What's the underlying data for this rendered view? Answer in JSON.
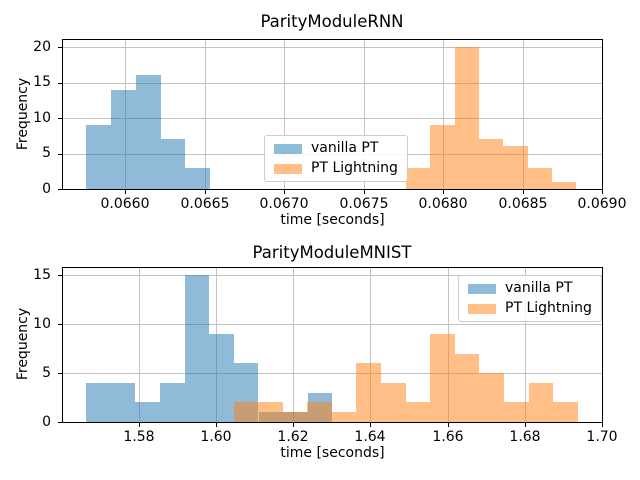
{
  "figure": {
    "background": "#ffffff",
    "grid_color": "#c3c3c3",
    "text_color": "#000000",
    "fill_alpha": 0.5,
    "series_colors": {
      "vanilla_pt": "#1f77b4",
      "pt_lightning": "#ff7f0e"
    }
  },
  "chart_data": [
    {
      "type": "bar",
      "subtype": "histogram",
      "title": "ParityModuleRNN",
      "xlabel": "time [seconds]",
      "ylabel": "Frequency",
      "xlim": [
        0.06561,
        0.069
      ],
      "ylim": [
        0,
        21
      ],
      "grid": true,
      "xticks": {
        "values": [
          0.066,
          0.0665,
          0.067,
          0.0675,
          0.068,
          0.0685,
          0.069
        ],
        "labels": [
          "0.0660",
          "0.0665",
          "0.0670",
          "0.0675",
          "0.0680",
          "0.0685",
          "0.0690"
        ]
      },
      "yticks": {
        "values": [
          0,
          5,
          10,
          15,
          20
        ],
        "labels": [
          "0",
          "5",
          "10",
          "15",
          "20"
        ]
      },
      "legend": {
        "location": "center",
        "entries": [
          "vanilla PT",
          "PT Lightning"
        ]
      },
      "series": [
        {
          "name": "vanilla PT",
          "color": "#1f77b4",
          "bin_start": 0.065757,
          "bin_width": 0.0001556,
          "counts": [
            9,
            14,
            16,
            7,
            3
          ]
        },
        {
          "name": "PT Lightning",
          "color": "#ff7f0e",
          "bin_start": 0.067766,
          "bin_width": 0.00015325,
          "counts": [
            3,
            9,
            20,
            7,
            6,
            3,
            1
          ]
        }
      ]
    },
    {
      "type": "bar",
      "subtype": "histogram",
      "title": "ParityModuleMNIST",
      "xlabel": "time [seconds]",
      "ylabel": "Frequency",
      "xlim": [
        1.5604,
        1.7
      ],
      "ylim": [
        0,
        15.75
      ],
      "grid": true,
      "xticks": {
        "values": [
          1.58,
          1.6,
          1.62,
          1.64,
          1.66,
          1.68,
          1.7
        ],
        "labels": [
          "1.58",
          "1.60",
          "1.62",
          "1.64",
          "1.66",
          "1.68",
          "1.70"
        ]
      },
      "yticks": {
        "values": [
          0,
          5,
          10,
          15
        ],
        "labels": [
          "0",
          "5",
          "10",
          "15"
        ]
      },
      "legend": {
        "location": "upper right",
        "entries": [
          "vanilla PT",
          "PT Lightning"
        ]
      },
      "series": [
        {
          "name": "vanilla PT",
          "color": "#1f77b4",
          "bin_start": 1.56637,
          "bin_width": 0.006381,
          "counts": [
            4,
            4,
            2,
            4,
            15,
            9,
            6,
            1,
            1,
            3
          ]
        },
        {
          "name": "PT Lightning",
          "color": "#ff7f0e",
          "bin_start": 1.60457,
          "bin_width": 0.0063665,
          "counts": [
            2,
            2,
            1,
            2,
            1,
            6,
            4,
            2,
            9,
            7,
            5,
            2,
            4,
            2
          ]
        }
      ]
    }
  ]
}
